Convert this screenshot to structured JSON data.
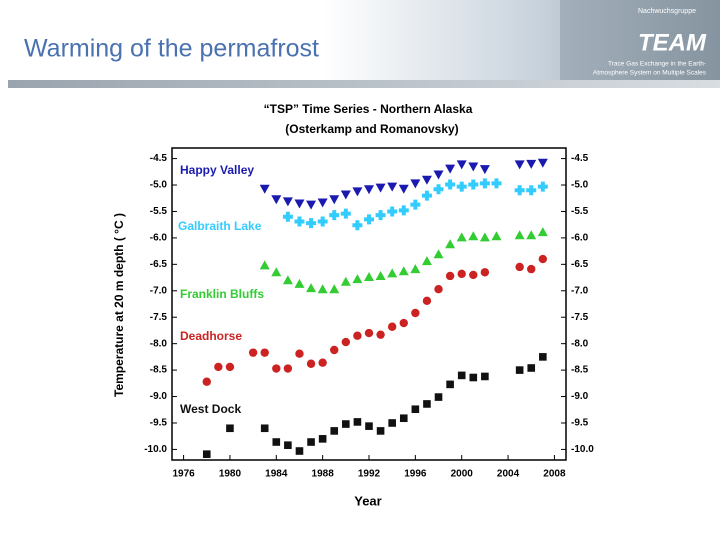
{
  "header": {
    "title": "Warming of the permafrost",
    "logo_top": "Nachwuchsgruppe",
    "logo": "TEAM",
    "logo_line1": "Trace Gas Exchange in the Earth-",
    "logo_line2": "Atmosphere System on Multiple Scales"
  },
  "chart_data": {
    "type": "scatter",
    "title": "“TSP” Time Series - Northern Alaska",
    "subtitle": "(Osterkamp and Romanovsky)",
    "x_label": "Year",
    "y_label": "Temperature at 20 m depth ( °C )",
    "xlim": [
      1975,
      2009
    ],
    "xticks": [
      1976,
      1980,
      1984,
      1988,
      1992,
      1996,
      2000,
      2004,
      2008
    ],
    "ylim": [
      -10.2,
      -4.3
    ],
    "yticks": [
      -4.5,
      {
        "value": -5,
        "label": "-5.0"
      },
      -5.5,
      {
        "value": -6,
        "label": "-6.0"
      },
      -6.5,
      {
        "value": -7,
        "label": "-7.0"
      },
      -7.5,
      {
        "value": -8,
        "label": "-8.0"
      },
      -8.5,
      {
        "value": -9,
        "label": "-9.0"
      },
      -9.5,
      {
        "value": -10,
        "label": "-10.0"
      }
    ],
    "y2lim": [
      -10.2,
      -4.3
    ],
    "y2ticks": [
      -4.5,
      {
        "value": -5,
        "label": "-5.0"
      },
      -5.5,
      {
        "value": -6,
        "label": "-6.0"
      },
      -6.5,
      {
        "value": -7,
        "label": "-7.0"
      },
      -7.5,
      {
        "value": -8,
        "label": "-8.0"
      },
      -8.5,
      {
        "value": -9,
        "label": "-9.0"
      },
      -9.5,
      {
        "value": -10,
        "label": "-10.0"
      }
    ],
    "series": [
      {
        "name": "Happy Valley",
        "color": "#1a1ab0",
        "marker": "triangle-down",
        "x": [
          1983,
          1984,
          1985,
          1986,
          1987,
          1988,
          1989,
          1990,
          1991,
          1992,
          1993,
          1994,
          1995,
          1996,
          1997,
          1998,
          1999,
          2000,
          2001,
          2002,
          2005,
          2006,
          2007
        ],
        "values": [
          -5.07,
          -5.27,
          -5.31,
          -5.35,
          -5.37,
          -5.33,
          -5.27,
          -5.18,
          -5.12,
          -5.08,
          -5.05,
          -5.03,
          -5.07,
          -4.97,
          -4.9,
          -4.8,
          -4.69,
          -4.61,
          -4.65,
          -4.7,
          -4.61,
          -4.6,
          -4.58
        ]
      },
      {
        "name": "Galbraith Lake",
        "color": "#33ccff",
        "marker": "plus",
        "x": [
          1985,
          1986,
          1987,
          1988,
          1989,
          1990,
          1991,
          1992,
          1993,
          1994,
          1995,
          1996,
          1997,
          1998,
          1999,
          2000,
          2001,
          2002,
          2003,
          2005,
          2006,
          2007
        ],
        "values": [
          -5.6,
          -5.69,
          -5.72,
          -5.69,
          -5.57,
          -5.54,
          -5.76,
          -5.65,
          -5.57,
          -5.5,
          -5.48,
          -5.37,
          -5.2,
          -5.08,
          -4.99,
          -5.03,
          -4.99,
          -4.97,
          -4.97,
          -5.1,
          -5.1,
          -5.03
        ]
      },
      {
        "name": "Franklin Bluffs",
        "color": "#33cc33",
        "marker": "triangle-up",
        "x": [
          1983,
          1984,
          1985,
          1986,
          1987,
          1988,
          1989,
          1990,
          1991,
          1992,
          1993,
          1994,
          1995,
          1996,
          1997,
          1998,
          1999,
          2000,
          2001,
          2002,
          2003,
          2005,
          2006,
          2007
        ],
        "values": [
          -6.52,
          -6.65,
          -6.8,
          -6.87,
          -6.95,
          -6.97,
          -6.97,
          -6.83,
          -6.78,
          -6.74,
          -6.72,
          -6.67,
          -6.63,
          -6.59,
          -6.44,
          -6.31,
          -6.12,
          -5.99,
          -5.97,
          -5.99,
          -5.97,
          -5.95,
          -5.95,
          -5.89
        ]
      },
      {
        "name": "Deadhorse",
        "color": "#cc2222",
        "marker": "circle",
        "x": [
          1978,
          1979,
          1980,
          1982,
          1983,
          1984,
          1985,
          1986,
          1987,
          1988,
          1989,
          1990,
          1991,
          1992,
          1993,
          1994,
          1995,
          1996,
          1997,
          1998,
          1999,
          2000,
          2001,
          2002,
          2005,
          2006,
          2007
        ],
        "values": [
          -8.72,
          -8.44,
          -8.44,
          -8.17,
          -8.17,
          -8.47,
          -8.47,
          -8.19,
          -8.38,
          -8.36,
          -8.12,
          -7.97,
          -7.85,
          -7.8,
          -7.83,
          -7.68,
          -7.61,
          -7.42,
          -7.19,
          -6.97,
          -6.72,
          -6.68,
          -6.7,
          -6.65,
          -6.55,
          -6.59,
          -6.4
        ]
      },
      {
        "name": "West Dock",
        "color": "#111111",
        "marker": "square",
        "x": [
          1978,
          1980,
          1983,
          1984,
          1985,
          1986,
          1987,
          1988,
          1989,
          1990,
          1991,
          1992,
          1993,
          1994,
          1995,
          1996,
          1997,
          1998,
          1999,
          2000,
          2001,
          2002,
          2005,
          2006,
          2007
        ],
        "values": [
          -10.09,
          -9.6,
          -9.6,
          -9.86,
          -9.92,
          -10.03,
          -9.86,
          -9.8,
          -9.65,
          -9.52,
          -9.48,
          -9.56,
          -9.65,
          -9.5,
          -9.41,
          -9.24,
          -9.14,
          -9.01,
          -8.77,
          -8.6,
          -8.64,
          -8.62,
          -8.5,
          -8.46,
          -8.25
        ]
      }
    ]
  }
}
